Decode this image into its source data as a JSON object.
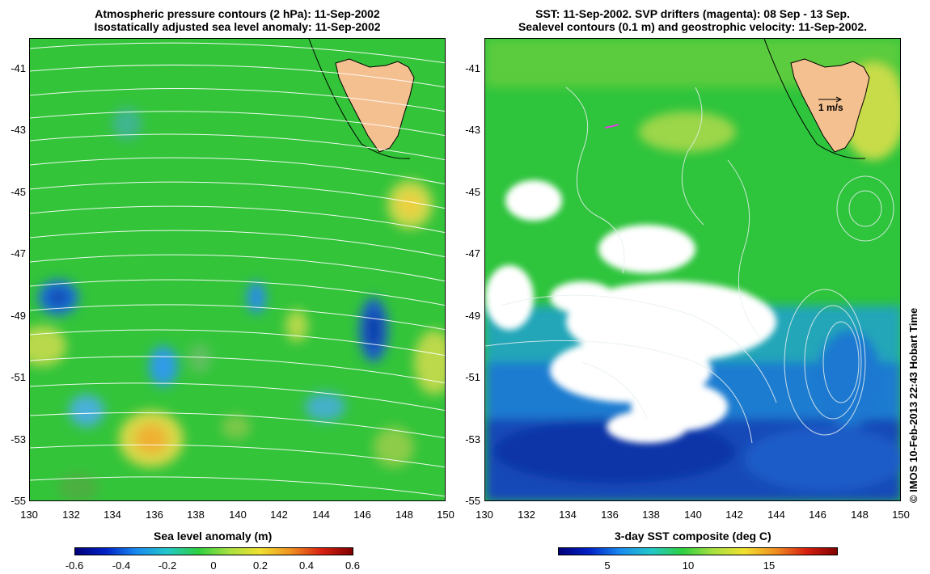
{
  "left_panel": {
    "title_line1": "Atmospheric pressure contours (2 hPa): 11-Sep-2002",
    "title_line2": "Isostatically adjusted sea level anomaly: 11-Sep-2002",
    "colorbar_label": "Sea level anomaly (m)",
    "colorbar_ticks": [
      "-0.6",
      "-0.4",
      "-0.2",
      "0",
      "0.2",
      "0.4",
      "0.6"
    ]
  },
  "right_panel": {
    "title_line1": "SST: 11-Sep-2002. SVP drifters (magenta): 08 Sep - 13 Sep.",
    "title_line2": "Sealevel contours (0.1 m) and geostrophic velocity: 11-Sep-2002.",
    "colorbar_label": "3-day SST composite (deg C)",
    "colorbar_ticks": [
      "5",
      "10",
      "15"
    ],
    "velocity_scale_label": "1 m/s"
  },
  "axes": {
    "lat_ticks": [
      "-41",
      "-43",
      "-45",
      "-47",
      "-49",
      "-51",
      "-53",
      "-55"
    ],
    "lon_ticks": [
      "130",
      "132",
      "134",
      "136",
      "138",
      "140",
      "142",
      "144",
      "146",
      "148",
      "150"
    ]
  },
  "copyright": "© IMOS 10-Feb-2013 22:43 Hobart Time",
  "colors": {
    "land": "#f5c090",
    "background_ocean_left": "#33cc33",
    "drifter": "#e040e0",
    "contour": "#ffffff"
  }
}
